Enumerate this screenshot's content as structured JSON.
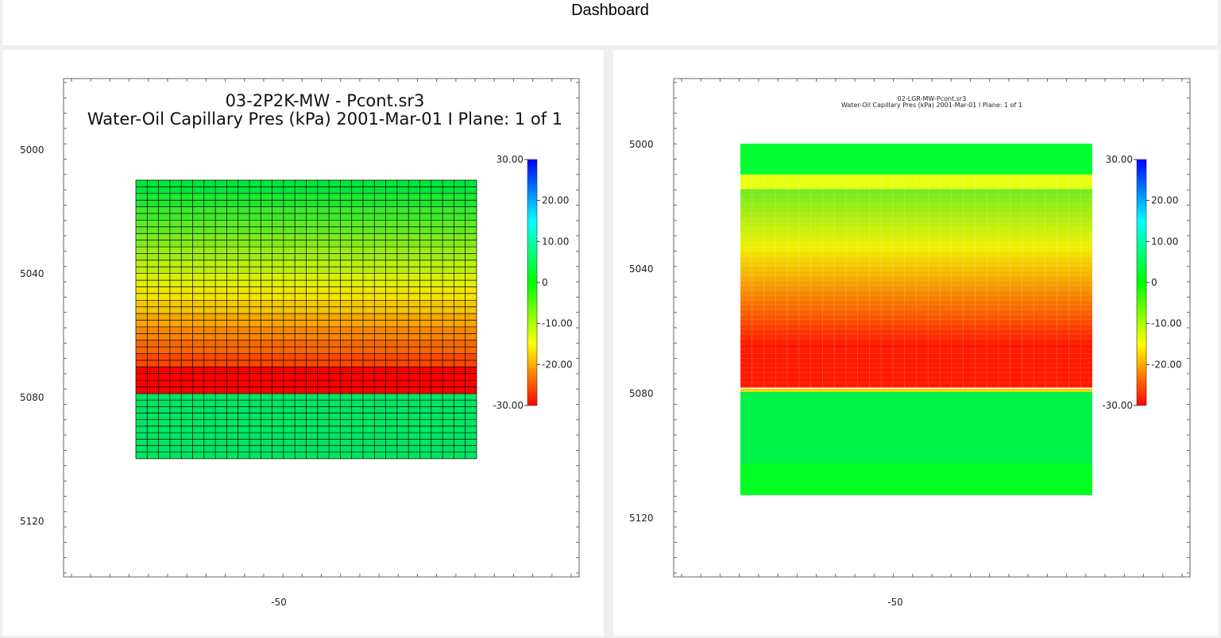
{
  "header": {
    "title": "Dashboard"
  },
  "colorbar": {
    "labels": [
      "30.00",
      "20.00",
      "10.00",
      "0",
      "-10.00",
      "-20.00",
      "-30.00"
    ],
    "stops": [
      "#0000ff",
      "#00ffff",
      "#00ff00",
      "#ffff00",
      "#ff0000"
    ]
  },
  "plots": [
    {
      "title_line1": "03-2P2K-MW - Pcont.sr3",
      "title_line2": "Water-Oil Capillary Pres (kPa)  2001-Mar-01   I Plane: 1 of 1",
      "y_ticks": [
        "5000",
        "5040",
        "5080",
        "5120"
      ],
      "x_ticks": [
        "-50"
      ]
    },
    {
      "title_line1": "02-LGR-MW-Pcont.sr3",
      "title_line2": "Water-Oil Capillary Pres (kPa)  2001-Mar-01   I Plane: 1 of 1",
      "y_ticks": [
        "5000",
        "5040",
        "5080",
        "5120"
      ],
      "x_ticks": [
        "-50"
      ]
    }
  ]
}
